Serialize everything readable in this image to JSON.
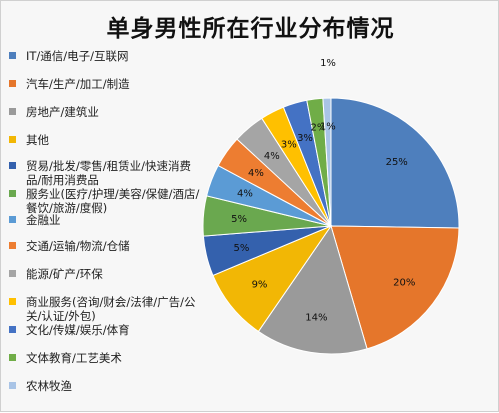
{
  "chart_data": {
    "type": "pie",
    "title": "单身男性所在行业分布情况",
    "legend_position": "left",
    "categories": [
      "IT/通信/电子/互联网",
      "汽车/生产/加工/制造",
      "房地产/建筑业",
      "其他",
      "贸易/批发/零售/租赁业/快速消费品/耐用消费品",
      "服务业(医疗/护理/美容/保健/酒店/餐饮/旅游/度假)",
      "金融业",
      "交通/运输/物流/仓储",
      "能源/矿产/环保",
      "商业服务(咨询/财会/法律/广告/公关/认证/外包)",
      "文化/传媒/娱乐/体育",
      "文体教育/工艺美术",
      "农林牧渔"
    ],
    "values": [
      25,
      20,
      14,
      9,
      5,
      5,
      4,
      4,
      4,
      3,
      3,
      2,
      1
    ],
    "data_labels": [
      "25%",
      "20%",
      "14%",
      "9%",
      "5%",
      "5%",
      "4%",
      "4%",
      "4%",
      "3%",
      "3%",
      "2%",
      "1%"
    ],
    "extra_label": "1%",
    "colors": [
      "#4e7fbd",
      "#e5762b",
      "#9a9a9a",
      "#f2b705",
      "#3461ad",
      "#6aa84f",
      "#5b9bd5",
      "#ed7d31",
      "#a5a5a5",
      "#ffc000",
      "#4472c4",
      "#70ad47",
      "#a9c4e6"
    ]
  }
}
